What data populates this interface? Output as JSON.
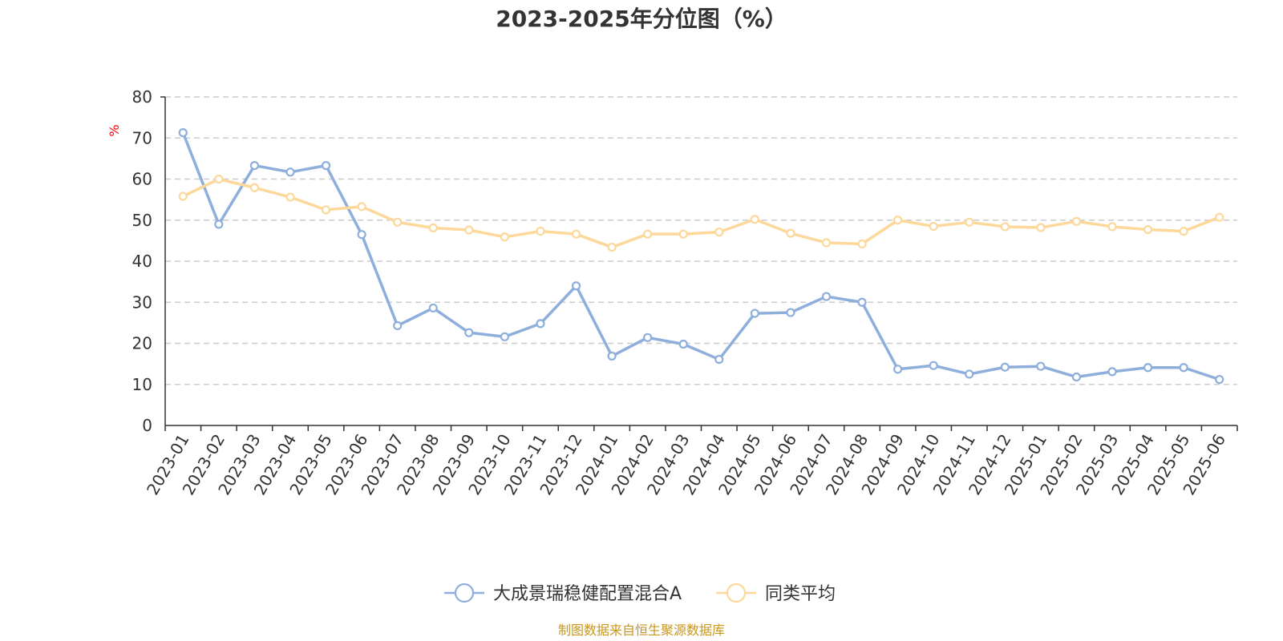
{
  "chart_data": {
    "type": "line",
    "title": "2023-2025年分位图（%）",
    "ylabel": "%",
    "ylim": [
      0,
      80
    ],
    "yticks": [
      0,
      10,
      20,
      30,
      40,
      50,
      60,
      70,
      80
    ],
    "grid": true,
    "legend_position": "bottom-center",
    "x": [
      "2023-01",
      "2023-02",
      "2023-03",
      "2023-04",
      "2023-05",
      "2023-06",
      "2023-07",
      "2023-08",
      "2023-09",
      "2023-10",
      "2023-11",
      "2023-12",
      "2024-01",
      "2024-02",
      "2024-03",
      "2024-04",
      "2024-05",
      "2024-06",
      "2024-07",
      "2024-08",
      "2024-09",
      "2024-10",
      "2024-11",
      "2024-12",
      "2025-01",
      "2025-02",
      "2025-03",
      "2025-04",
      "2025-05",
      "2025-06"
    ],
    "series": [
      {
        "name": "大成景瑞稳健配置混合A",
        "color": "#8eaedc",
        "values": [
          71.3,
          49.0,
          63.3,
          61.7,
          63.3,
          46.5,
          24.3,
          28.6,
          22.6,
          21.6,
          24.8,
          34.0,
          16.9,
          21.4,
          19.8,
          16.1,
          27.3,
          27.5,
          31.4,
          30.0,
          13.7,
          14.6,
          12.5,
          14.2,
          14.4,
          11.8,
          13.1,
          14.1,
          14.1,
          11.2
        ]
      },
      {
        "name": "同类平均",
        "color": "#fcd89a",
        "values": [
          55.8,
          60.0,
          57.9,
          55.6,
          52.5,
          53.3,
          49.5,
          48.1,
          47.6,
          45.9,
          47.3,
          46.6,
          43.4,
          46.6,
          46.6,
          47.1,
          50.2,
          46.8,
          44.5,
          44.2,
          50.0,
          48.5,
          49.5,
          48.4,
          48.2,
          49.7,
          48.4,
          47.7,
          47.3,
          50.7
        ]
      }
    ]
  },
  "footer": {
    "source": "制图数据来自恒生聚源数据库"
  }
}
